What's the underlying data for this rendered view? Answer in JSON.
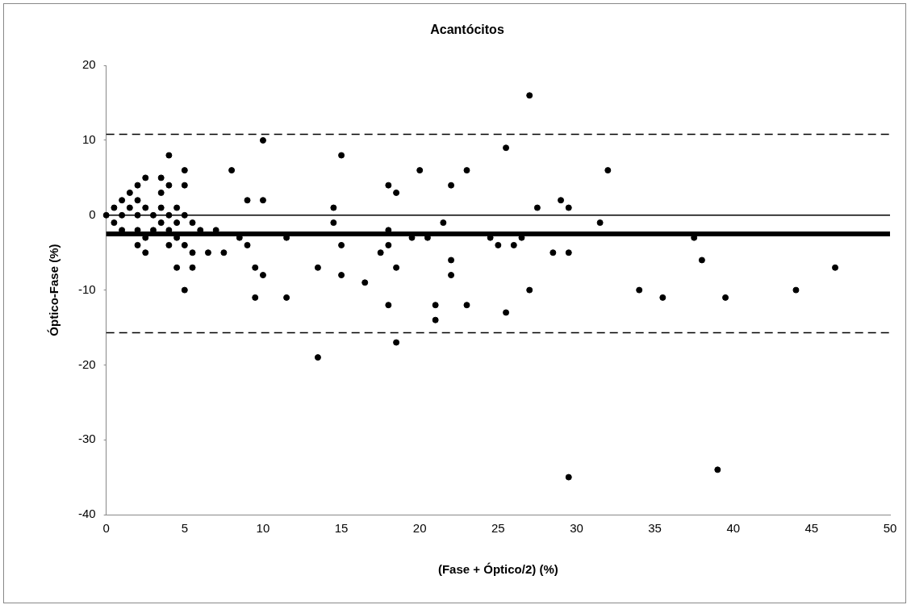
{
  "chart_data": {
    "type": "scatter",
    "title": "Acantócitos",
    "xlabel": "(Fase + Óptico/2) (%)",
    "ylabel": "Óptico-Fase (%)",
    "xlim": [
      0,
      50
    ],
    "xticks": [
      0,
      5,
      10,
      15,
      20,
      25,
      30,
      35,
      40,
      45,
      50
    ],
    "ylim": [
      -40,
      20
    ],
    "yticks": [
      -40,
      -30,
      -20,
      -10,
      0,
      10,
      20
    ],
    "grid": false,
    "legend": false,
    "marker": "circle",
    "series": [
      {
        "color": "#000000",
        "x": [
          0,
          0.5,
          0.5,
          1,
          1,
          1,
          1.5,
          1.5,
          2,
          2,
          2,
          2,
          2,
          2.5,
          2.5,
          2.5,
          2.5,
          3,
          3,
          3.5,
          3.5,
          3.5,
          3.5,
          4,
          4,
          4,
          4,
          4,
          4.5,
          4.5,
          4.5,
          4.5,
          5,
          5,
          5,
          5,
          5,
          5.5,
          5.5,
          5.5,
          6,
          6.5,
          7,
          7.5,
          8,
          8.5,
          9,
          9,
          9.5,
          9.5,
          10,
          10,
          10,
          11.5,
          11.5,
          13.5,
          13.5,
          14.5,
          14.5,
          15,
          15,
          15,
          16.5,
          17.5,
          18,
          18,
          18,
          18,
          18.5,
          18.5,
          18.5,
          19.5,
          20,
          20.5,
          21,
          21,
          21.5,
          22,
          22,
          22,
          23,
          23,
          24.5,
          25,
          25.5,
          25.5,
          26,
          26.5,
          27,
          27,
          27.5,
          28.5,
          29,
          29.5,
          29.5,
          29.5,
          31.5,
          32,
          34,
          35.5,
          37.5,
          38,
          39,
          39.5,
          44,
          46.5
        ],
        "values": [
          0,
          1,
          -1,
          2,
          0,
          -2,
          3,
          1,
          4,
          2,
          0,
          -2,
          -4,
          5,
          1,
          -3,
          -5,
          0,
          -2,
          5,
          3,
          1,
          -1,
          8,
          4,
          0,
          -2,
          -4,
          1,
          -1,
          -3,
          -7,
          6,
          4,
          0,
          -4,
          -10,
          -1,
          -5,
          -7,
          -2,
          -5,
          -2,
          -5,
          6,
          -3,
          2,
          -4,
          -7,
          -11,
          10,
          2,
          -8,
          -3,
          -11,
          -7,
          -19,
          1,
          -1,
          8,
          -4,
          -8,
          -9,
          -5,
          4,
          -2,
          -4,
          -12,
          3,
          -7,
          -17,
          -3,
          6,
          -3,
          -12,
          -14,
          -1,
          4,
          -6,
          -8,
          6,
          -12,
          -3,
          -4,
          9,
          -13,
          -4,
          -3,
          16,
          -10,
          1,
          -5,
          2,
          1,
          -5,
          -35,
          -1,
          6,
          -10,
          -11,
          -3,
          -6,
          -34,
          -11,
          -10,
          -7
        ]
      }
    ],
    "ref_lines": [
      {
        "axis": "y",
        "value": 0,
        "color": "#000000"
      },
      {
        "axis": "y",
        "value": -2.5,
        "color": "#000000",
        "line_style": "solid"
      },
      {
        "axis": "y",
        "value": 10.8,
        "color": "#000000",
        "line_style": "dashed"
      },
      {
        "axis": "y",
        "value": -15.7,
        "color": "#000000",
        "line_style": "dashed"
      }
    ]
  }
}
